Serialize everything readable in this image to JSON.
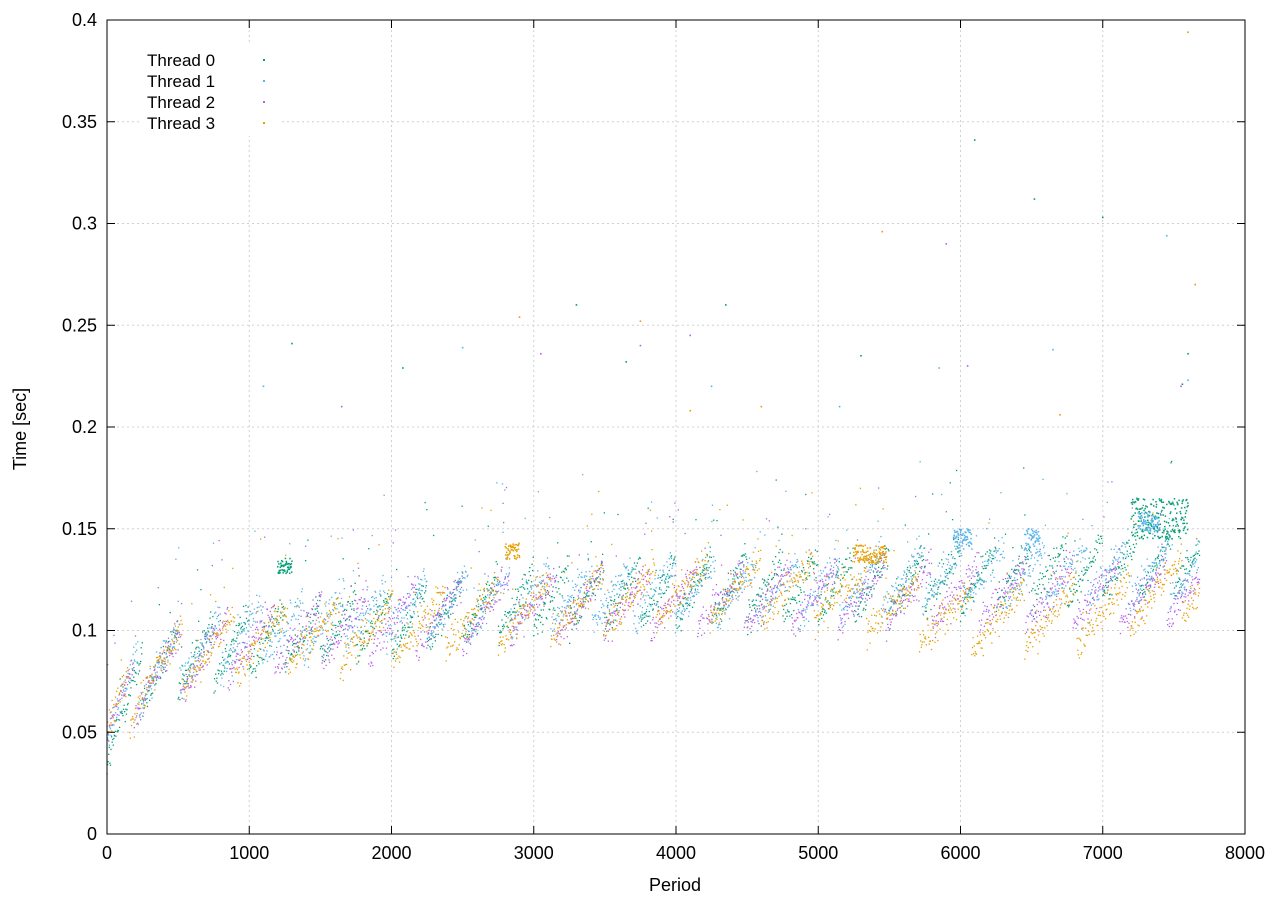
{
  "chart_data": {
    "type": "scatter",
    "title": "",
    "xlabel": "Period",
    "ylabel": "Time [sec]",
    "xlim": [
      0,
      8000
    ],
    "ylim": [
      0,
      0.4
    ],
    "x_ticks": [
      0,
      1000,
      2000,
      3000,
      4000,
      5000,
      6000,
      7000,
      8000
    ],
    "y_ticks": [
      0,
      0.05,
      0.1,
      0.15,
      0.2,
      0.25,
      0.3,
      0.35,
      0.4
    ],
    "x_tick_labels": [
      "0",
      "1000",
      "2000",
      "3000",
      "4000",
      "5000",
      "6000",
      "7000",
      "8000"
    ],
    "y_tick_labels": [
      "0",
      "0.05",
      "0.1",
      "0.15",
      "0.2",
      "0.25",
      "0.3",
      "0.35",
      "0.4"
    ],
    "grid": true,
    "legend_position": "top-left",
    "x_range_of_data": [
      0,
      7680
    ],
    "series": [
      {
        "name": "Thread 0",
        "color": "#009e73",
        "baseline": [
          [
            0,
            0.05
          ],
          [
            300,
            0.08
          ],
          [
            1000,
            0.095
          ],
          [
            2000,
            0.105
          ],
          [
            3000,
            0.115
          ],
          [
            4000,
            0.12
          ],
          [
            5000,
            0.122
          ],
          [
            6000,
            0.125
          ],
          [
            7000,
            0.13
          ],
          [
            7680,
            0.135
          ]
        ],
        "clusters": [
          [
            1200,
            1300,
            0.128,
            0.136
          ],
          [
            7200,
            7600,
            0.145,
            0.165
          ]
        ],
        "outliers": [
          [
            1300,
            0.241
          ],
          [
            2080,
            0.229
          ],
          [
            3300,
            0.26
          ],
          [
            3650,
            0.232
          ],
          [
            4350,
            0.26
          ],
          [
            5300,
            0.235
          ],
          [
            6100,
            0.341
          ],
          [
            6520,
            0.312
          ],
          [
            7000,
            0.303
          ],
          [
            7560,
            0.221
          ],
          [
            7600,
            0.236
          ]
        ]
      },
      {
        "name": "Thread 1",
        "color": "#56b4e9",
        "baseline": [
          [
            0,
            0.055
          ],
          [
            300,
            0.082
          ],
          [
            1000,
            0.098
          ],
          [
            2000,
            0.11
          ],
          [
            3000,
            0.115
          ],
          [
            4000,
            0.12
          ],
          [
            5000,
            0.12
          ],
          [
            6000,
            0.128
          ],
          [
            7000,
            0.128
          ],
          [
            7680,
            0.13
          ]
        ],
        "clusters": [
          [
            5950,
            6080,
            0.14,
            0.15
          ],
          [
            6450,
            6560,
            0.138,
            0.15
          ],
          [
            7250,
            7400,
            0.148,
            0.158
          ]
        ],
        "outliers": [
          [
            1100,
            0.22
          ],
          [
            2500,
            0.239
          ],
          [
            4250,
            0.22
          ],
          [
            5150,
            0.21
          ],
          [
            5850,
            0.229
          ],
          [
            6650,
            0.238
          ],
          [
            7450,
            0.294
          ],
          [
            7600,
            0.223
          ]
        ]
      },
      {
        "name": "Thread 2",
        "color": "#b65fea",
        "baseline": [
          [
            0,
            0.05
          ],
          [
            300,
            0.08
          ],
          [
            1000,
            0.095
          ],
          [
            2000,
            0.105
          ],
          [
            3000,
            0.112
          ],
          [
            4000,
            0.115
          ],
          [
            5000,
            0.118
          ],
          [
            6000,
            0.118
          ],
          [
            7000,
            0.118
          ],
          [
            7680,
            0.12
          ]
        ],
        "clusters": [],
        "outliers": [
          [
            1650,
            0.21
          ],
          [
            3050,
            0.236
          ],
          [
            3750,
            0.24
          ],
          [
            4100,
            0.245
          ],
          [
            5900,
            0.29
          ],
          [
            6050,
            0.23
          ],
          [
            7550,
            0.22
          ]
        ]
      },
      {
        "name": "Thread 3",
        "color": "#e69f00",
        "baseline": [
          [
            0,
            0.05
          ],
          [
            300,
            0.08
          ],
          [
            1000,
            0.095
          ],
          [
            2000,
            0.1
          ],
          [
            3000,
            0.11
          ],
          [
            4000,
            0.12
          ],
          [
            5000,
            0.12
          ],
          [
            6000,
            0.105
          ],
          [
            7000,
            0.11
          ],
          [
            7680,
            0.125
          ]
        ],
        "clusters": [
          [
            2800,
            2900,
            0.135,
            0.143
          ],
          [
            5250,
            5480,
            0.133,
            0.142
          ]
        ],
        "outliers": [
          [
            2900,
            0.254
          ],
          [
            3750,
            0.252
          ],
          [
            4100,
            0.208
          ],
          [
            4600,
            0.21
          ],
          [
            5450,
            0.296
          ],
          [
            6700,
            0.206
          ],
          [
            7650,
            0.27
          ],
          [
            7600,
            0.394
          ]
        ]
      }
    ]
  }
}
